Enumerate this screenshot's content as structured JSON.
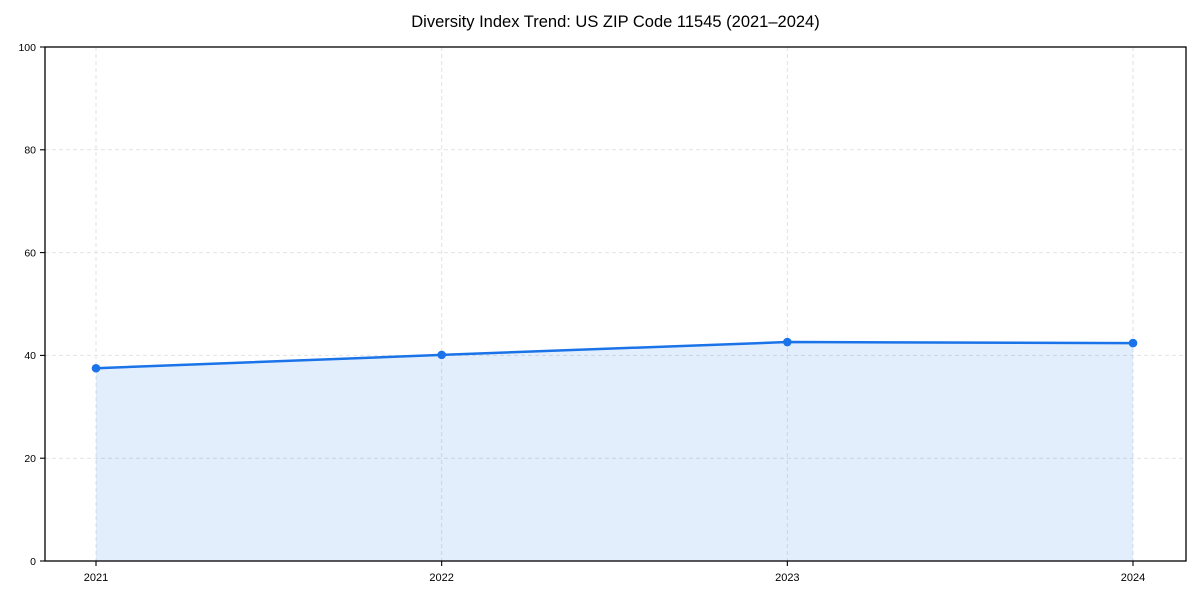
{
  "title": "Diversity Index Trend: US ZIP Code 11545 (2021–2024)",
  "chart_data": {
    "type": "area",
    "title": "Diversity Index Trend: US ZIP Code 11545 (2021–2024)",
    "x": [
      "2021",
      "2022",
      "2023",
      "2024"
    ],
    "series": [
      {
        "name": "Diversity Index",
        "values": [
          37.5,
          40.1,
          42.6,
          42.4
        ]
      }
    ],
    "xlabel": "",
    "ylabel": "",
    "ylim": [
      0,
      100
    ],
    "y_ticks": [
      0,
      20,
      40,
      60,
      80,
      100
    ],
    "grid": "dashed, horizontal and vertical",
    "legend": "none",
    "colors": {
      "line": "#1a73e8",
      "marker": "#1a73e8",
      "fill": "rgba(26,115,232,0.12)",
      "grid": "#e2e2e2",
      "axis": "#000000",
      "tick_label": "#000000",
      "background": "#ffffff"
    }
  }
}
